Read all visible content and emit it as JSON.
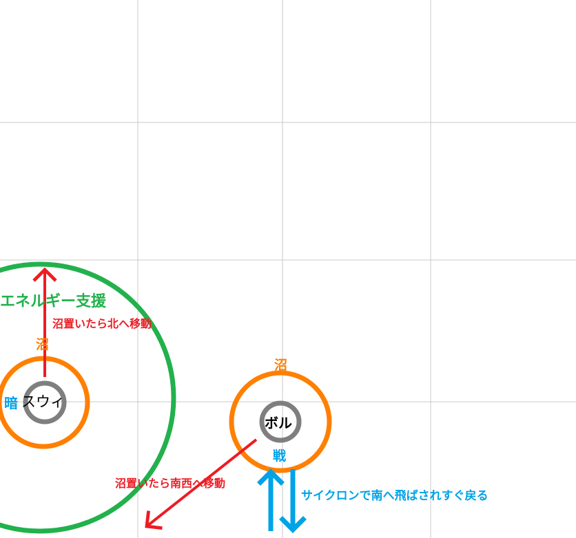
{
  "colors": {
    "grid": "#c8c8c8",
    "green": "#22b14c",
    "orange": "#ff7f00",
    "gray": "#7f7f7f",
    "red": "#ed1c24",
    "blue": "#00a2e8",
    "black": "#000000"
  },
  "labels": {
    "energy_support": "エネルギー支援",
    "north_move": "沼置いたら北へ移動",
    "swamp_left": "沼",
    "dark": "暗",
    "swui": "スウィ",
    "swamp_right": "沼",
    "bol": "ボル",
    "battle": "戦",
    "southwest_move": "沼置いたら南西へ移動",
    "cyclone": "サイクロンで南へ飛ばされすぐ戻る"
  }
}
